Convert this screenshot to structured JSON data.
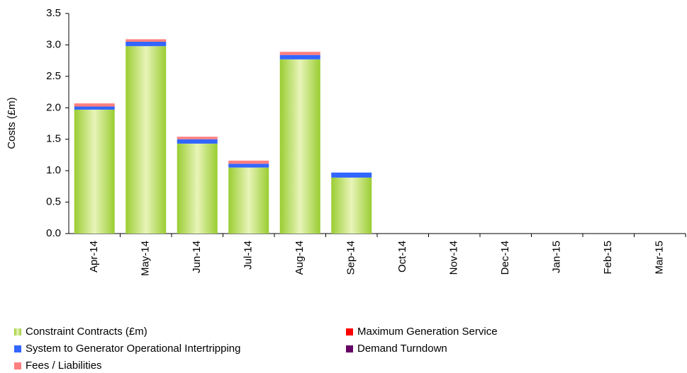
{
  "chart_data": {
    "type": "bar",
    "stacked": true,
    "y_label": "Costs (£m)",
    "categories": [
      "Apr-14",
      "May-14",
      "Jun-14",
      "Jul-14",
      "Aug-14",
      "Sep-14",
      "Oct-14",
      "Nov-14",
      "Dec-14",
      "Jan-15",
      "Feb-15",
      "Mar-15"
    ],
    "series": [
      {
        "name": "Constraint Contracts (£m)",
        "color": "#9acd32",
        "values": [
          1.97,
          2.98,
          1.43,
          1.05,
          2.77,
          0.89,
          null,
          null,
          null,
          null,
          null,
          null
        ]
      },
      {
        "name": "System to Generator Operational Intertripping",
        "color": "#3366ff",
        "values": [
          0.05,
          0.07,
          0.07,
          0.06,
          0.07,
          0.08,
          null,
          null,
          null,
          null,
          null,
          null
        ]
      },
      {
        "name": "Fees / Liabilities",
        "color": "#ff8080",
        "values": [
          0.05,
          0.04,
          0.04,
          0.05,
          0.05,
          0,
          null,
          null,
          null,
          null,
          null,
          null
        ]
      },
      {
        "name": "Maximum Generation Service",
        "color": "#ff0000",
        "values": [
          0,
          0,
          0,
          0,
          0,
          0,
          null,
          null,
          null,
          null,
          null,
          null
        ]
      },
      {
        "name": "Demand Turndown",
        "color": "#660066",
        "values": [
          0,
          0,
          0,
          0,
          0,
          0,
          null,
          null,
          null,
          null,
          null,
          null
        ]
      }
    ],
    "ylim": [
      0,
      3.5
    ],
    "yticks": [
      {
        "value": 0,
        "label": "0.0"
      },
      0.5,
      {
        "value": 1,
        "label": "1.0"
      },
      1.5,
      {
        "value": 2,
        "label": "2.0"
      },
      2.5,
      {
        "value": 3,
        "label": "3.0"
      },
      3.5
    ],
    "grid": false,
    "legend": "bottom"
  }
}
